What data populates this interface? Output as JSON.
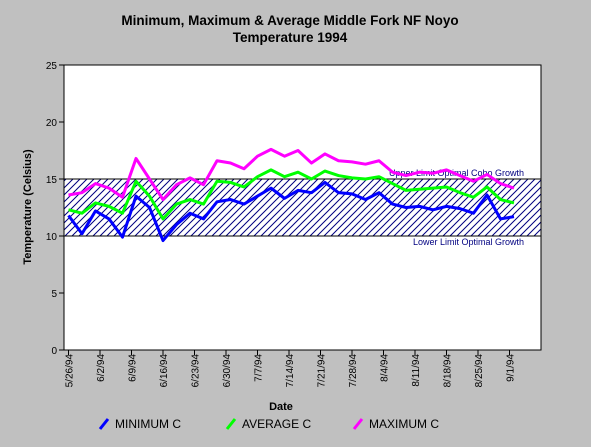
{
  "chart_data": {
    "type": "line",
    "title": [
      "Minimum, Maximum & Average Middle Fork NF Noyo",
      "Temperature 1994"
    ],
    "x_label": "Date",
    "y_label": "Temperature (Celsius)",
    "x": [
      "5/26/94",
      "5/29/94",
      "6/1/94",
      "6/4/94",
      "6/7/94",
      "6/10/94",
      "6/13/94",
      "6/16/94",
      "6/19/94",
      "6/22/94",
      "6/25/94",
      "6/28/94",
      "7/1/94",
      "7/4/94",
      "7/7/94",
      "7/10/94",
      "7/13/94",
      "7/16/94",
      "7/19/94",
      "7/22/94",
      "7/25/94",
      "7/28/94",
      "7/31/94",
      "8/3/94",
      "8/6/94",
      "8/9/94",
      "8/12/94",
      "8/15/94",
      "8/18/94",
      "8/21/94",
      "8/24/94",
      "8/27/94",
      "8/30/94",
      "9/2/94"
    ],
    "series": [
      {
        "name": "MINIMUM C",
        "color": "#0000ff",
        "values": [
          11.8,
          10.2,
          12.2,
          11.5,
          9.9,
          13.5,
          12.5,
          9.6,
          11,
          12,
          11.5,
          13,
          13.2,
          12.8,
          13.5,
          14.2,
          13.3,
          14,
          13.8,
          14.7,
          13.8,
          13.7,
          13.2,
          13.8,
          12.8,
          12.5,
          12.6,
          12.3,
          12.6,
          12.4,
          12,
          13.6,
          11.5,
          11.7
        ]
      },
      {
        "name": "AVERAGE C",
        "color": "#00ff00",
        "values": [
          12.3,
          12.0,
          12.9,
          12.6,
          12.0,
          14.8,
          13.5,
          11.5,
          12.8,
          13.2,
          12.8,
          14.8,
          14.7,
          14.3,
          15.2,
          15.8,
          15.2,
          15.6,
          15.0,
          15.7,
          15.3,
          15.1,
          15.0,
          15.2,
          14.6,
          14.0,
          14.1,
          14.2,
          14.3,
          13.8,
          13.4,
          14.3,
          13.2,
          12.9
        ]
      },
      {
        "name": "MAXIMUM C",
        "color": "#ff00ff",
        "values": [
          13.6,
          13.8,
          14.6,
          14.2,
          13.4,
          16.8,
          15.0,
          13.2,
          14.5,
          15.1,
          14.5,
          16.6,
          16.4,
          15.9,
          17.0,
          17.6,
          17.0,
          17.5,
          16.4,
          17.2,
          16.6,
          16.5,
          16.3,
          16.6,
          15.6,
          15.3,
          15.6,
          15.5,
          15.8,
          15.3,
          14.8,
          15.4,
          14.6,
          14.2
        ]
      }
    ],
    "bands": [
      {
        "from": 10,
        "to": 15
      }
    ],
    "annotations": [
      {
        "text": "Upper Limit Optimal Coho Growth",
        "y": 15
      },
      {
        "text": "Lower Limit Optimal Growth",
        "y": 10
      }
    ],
    "xlim": [
      "5/25/94",
      "9/8/94"
    ],
    "xticks": [
      "5/26/94",
      "6/2/94",
      "6/9/94",
      "6/16/94",
      "6/23/94",
      "6/30/94",
      "7/7/94",
      "7/14/94",
      "7/21/94",
      "7/28/94",
      "8/4/94",
      "8/11/94",
      "8/18/94",
      "8/25/94",
      "9/1/94"
    ],
    "ylim": [
      0,
      25
    ],
    "yticks": [
      0,
      5,
      10,
      15,
      20,
      25
    ],
    "grid": false
  }
}
